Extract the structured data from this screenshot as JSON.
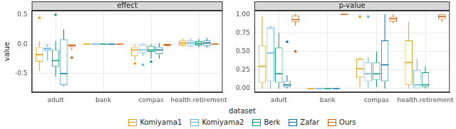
{
  "chart_data": {
    "type": "boxplot",
    "xlabel": "dataset",
    "ylabel": "value",
    "grid": true,
    "legend": "bottom",
    "categories": [
      "adult",
      "bank",
      "compas",
      "health.retirement"
    ],
    "series": [
      {
        "name": "Komiyama1",
        "color": "#E69F00"
      },
      {
        "name": "Komiyama2",
        "color": "#56B4E9"
      },
      {
        "name": "Berk",
        "color": "#009E73"
      },
      {
        "name": "Zafar",
        "color": "#0072B2"
      },
      {
        "name": "Ours",
        "color": "#D55E00"
      }
    ],
    "panels": [
      {
        "title": "effect",
        "ylim": [
          -0.82,
          0.57
        ],
        "yticks": [
          {
            "value": -0.5,
            "label": "-0.5"
          },
          {
            "value": 0,
            "label": "0.0"
          },
          {
            "value": 0.5,
            "label": "0.5"
          }
        ],
        "boxes": [
          [
            {
              "min": -0.45,
              "q1": -0.3,
              "median": -0.18,
              "q3": -0.05,
              "max": 0.05,
              "outliers": [
                0.45
              ]
            },
            {
              "min": 0,
              "q1": 0,
              "median": 0,
              "q3": 0,
              "max": 0,
              "outliers": []
            },
            {
              "min": -0.28,
              "q1": -0.2,
              "median": -0.1,
              "q3": -0.05,
              "max": 0,
              "outliers": [
                -0.33
              ]
            },
            {
              "min": -0.05,
              "q1": -0.02,
              "median": 0.02,
              "q3": 0.06,
              "max": 0.1,
              "outliers": []
            }
          ],
          [
            {
              "min": -0.28,
              "q1": -0.12,
              "median": -0.08,
              "q3": -0.05,
              "max": 0,
              "outliers": []
            },
            {
              "min": 0,
              "q1": 0,
              "median": 0,
              "q3": 0,
              "max": 0,
              "outliers": []
            },
            {
              "min": -0.2,
              "q1": -0.15,
              "median": -0.1,
              "q3": 0,
              "max": 0.02,
              "outliers": [
                -0.35
              ]
            },
            {
              "min": -0.05,
              "q1": -0.03,
              "median": 0.02,
              "q3": 0.06,
              "max": 0.1,
              "outliers": []
            }
          ],
          [
            {
              "min": -0.55,
              "q1": -0.38,
              "median": -0.28,
              "q3": -0.1,
              "max": 0.05,
              "outliers": [
                0.5
              ]
            },
            {
              "min": 0,
              "q1": 0,
              "median": 0,
              "q3": 0,
              "max": 0,
              "outliers": []
            },
            {
              "min": -0.25,
              "q1": -0.13,
              "median": -0.1,
              "q3": -0.03,
              "max": 0,
              "outliers": [
                -0.3
              ]
            },
            {
              "min": -0.06,
              "q1": -0.02,
              "median": 0.01,
              "q3": 0.05,
              "max": 0.09,
              "outliers": []
            }
          ],
          [
            {
              "min": -0.72,
              "q1": -0.7,
              "median": -0.5,
              "q3": 0.08,
              "max": 0.25,
              "outliers": []
            },
            {
              "min": 0,
              "q1": 0,
              "median": 0,
              "q3": 0,
              "max": 0,
              "outliers": []
            },
            {
              "min": -0.25,
              "q1": -0.17,
              "median": -0.1,
              "q3": -0.05,
              "max": 0.02,
              "outliers": []
            },
            {
              "min": -0.06,
              "q1": -0.03,
              "median": 0.02,
              "q3": 0.06,
              "max": 0.1,
              "outliers": []
            }
          ],
          [
            {
              "min": -0.1,
              "q1": -0.05,
              "median": -0.02,
              "q3": 0,
              "max": 0,
              "outliers": [
                -0.23
              ]
            },
            {
              "min": 0,
              "q1": 0,
              "median": 0,
              "q3": 0,
              "max": 0,
              "outliers": []
            },
            {
              "min": -0.04,
              "q1": -0.03,
              "median": -0.01,
              "q3": 0,
              "max": 0,
              "outliers": []
            },
            {
              "min": -0.01,
              "q1": -0.01,
              "median": 0,
              "q3": 0,
              "max": 0.01,
              "outliers": []
            }
          ]
        ]
      },
      {
        "title": "p-value",
        "ylim": [
          -0.05,
          1.05
        ],
        "yticks": [
          {
            "value": 0,
            "label": "0.00"
          },
          {
            "value": 0.25,
            "label": "0.25"
          },
          {
            "value": 0.5,
            "label": "0.50"
          },
          {
            "value": 0.75,
            "label": "0.75"
          },
          {
            "value": 1,
            "label": "1.00"
          }
        ],
        "boxes": [
          [
            {
              "min": 0,
              "q1": 0.08,
              "median": 0.3,
              "q3": 0.58,
              "max": 0.97,
              "outliers": []
            },
            {
              "min": 0,
              "q1": 0,
              "median": 0,
              "q3": 0,
              "max": 0,
              "outliers": []
            },
            {
              "min": 0.02,
              "q1": 0.15,
              "median": 0.27,
              "q3": 0.4,
              "max": 0.42,
              "outliers": [
                0.97
              ]
            },
            {
              "min": 0,
              "q1": 0.05,
              "median": 0.35,
              "q3": 0.65,
              "max": 0.9,
              "outliers": []
            }
          ],
          [
            {
              "min": 0,
              "q1": 0.1,
              "median": 0.48,
              "q3": 0.82,
              "max": 0.85,
              "outliers": []
            },
            {
              "min": 0,
              "q1": 0,
              "median": 0,
              "q3": 0,
              "max": 0,
              "outliers": []
            },
            {
              "min": 0,
              "q1": 0.1,
              "median": 0.2,
              "q3": 0.35,
              "max": 0.42,
              "outliers": [
                0.97
              ]
            },
            {
              "min": 0,
              "q1": 0,
              "median": 0.05,
              "q3": 0.25,
              "max": 0.4,
              "outliers": []
            }
          ],
          [
            {
              "min": 0,
              "q1": 0.08,
              "median": 0.2,
              "q3": 0.55,
              "max": 0.75,
              "outliers": []
            },
            {
              "min": 0,
              "q1": 0,
              "median": 0,
              "q3": 0,
              "max": 0,
              "outliers": []
            },
            {
              "min": 0.02,
              "q1": 0.12,
              "median": 0.2,
              "q3": 0.35,
              "max": 0.5,
              "outliers": []
            },
            {
              "min": 0,
              "q1": 0.02,
              "median": 0.05,
              "q3": 0.22,
              "max": 0.3,
              "outliers": []
            }
          ],
          [
            {
              "min": 0,
              "q1": 0.02,
              "median": 0.05,
              "q3": 0.1,
              "max": 0.18,
              "outliers": [
                0.63
              ]
            },
            {
              "min": 0,
              "q1": 0,
              "median": 0,
              "q3": 0,
              "max": 0,
              "outliers": []
            },
            {
              "min": 0,
              "q1": 0.1,
              "median": 0.32,
              "q3": 0.65,
              "max": 1,
              "outliers": []
            },
            null
          ],
          [
            {
              "min": 0.85,
              "q1": 0.9,
              "median": 0.93,
              "q3": 0.98,
              "max": 1,
              "outliers": [
                0.5
              ]
            },
            {
              "min": 1,
              "q1": 1,
              "median": 1,
              "q3": 1,
              "max": 1,
              "outliers": []
            },
            {
              "min": 0.88,
              "q1": 0.9,
              "median": 0.94,
              "q3": 0.97,
              "max": 1,
              "outliers": []
            },
            {
              "min": 0.9,
              "q1": 0.93,
              "median": 0.97,
              "q3": 1,
              "max": 1,
              "outliers": []
            }
          ]
        ]
      }
    ]
  }
}
